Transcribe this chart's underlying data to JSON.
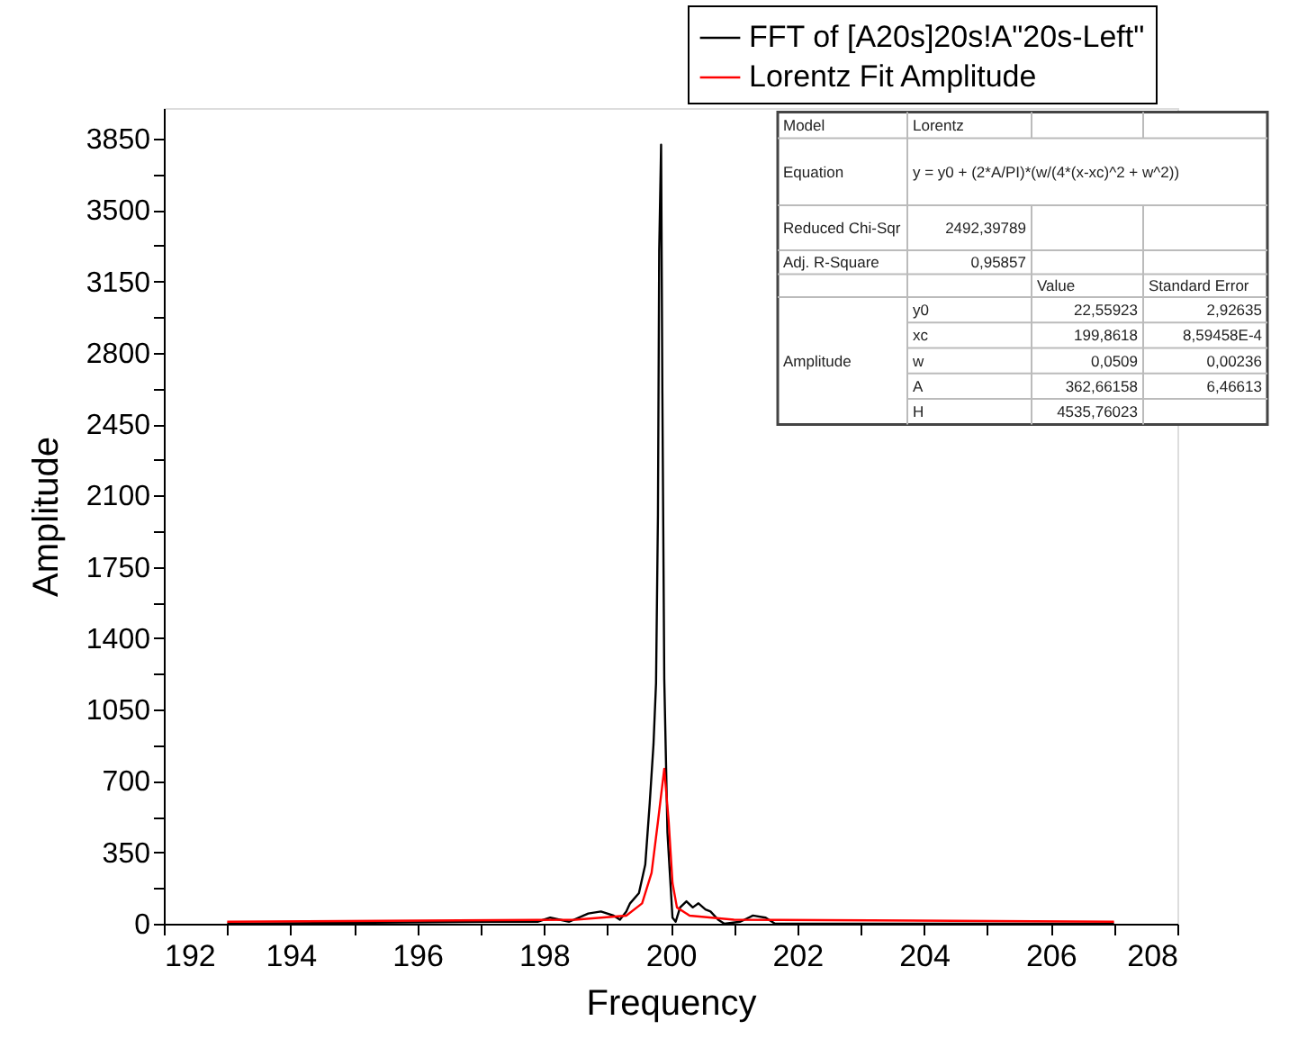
{
  "chart_data": {
    "type": "line",
    "xlabel": "Frequency",
    "ylabel": "Amplitude",
    "xlim": [
      192,
      208
    ],
    "xticks": [
      192,
      {
        "value": 193,
        "label": null
      },
      194,
      {
        "value": 195,
        "label": null
      },
      196,
      {
        "value": 197,
        "label": null
      },
      198,
      {
        "value": 199,
        "label": null
      },
      200,
      {
        "value": 201,
        "label": null
      },
      202,
      {
        "value": 203,
        "label": null
      },
      204,
      {
        "value": 205,
        "label": null
      },
      206,
      {
        "value": 207,
        "label": null
      },
      208
    ],
    "ylim": [
      0,
      4000
    ],
    "yticks": [
      0,
      {
        "value": 175,
        "label": null
      },
      350,
      {
        "value": 525,
        "label": null
      },
      700,
      {
        "value": 875,
        "label": null
      },
      1050,
      {
        "value": 1225,
        "label": null
      },
      1400,
      {
        "value": 1575,
        "label": null
      },
      1750,
      {
        "value": 1925,
        "label": null
      },
      2100,
      {
        "value": 2275,
        "label": null
      },
      2450,
      {
        "value": 2625,
        "label": null
      },
      2800,
      {
        "value": 2975,
        "label": null
      },
      3150,
      {
        "value": 3325,
        "label": null
      },
      3500,
      {
        "value": 3675,
        "label": null
      },
      3850
    ],
    "grid": false,
    "legend": "top right",
    "marker": "none",
    "line_style": "solid",
    "series": [
      {
        "name": "FFT of [A20s]20s!A\"20s-Left\"",
        "color": "#000000",
        "x": [
          193,
          197.2,
          197.9,
          198.1,
          198.4,
          198.7,
          198.9,
          199.1,
          199.2,
          199.3,
          199.36,
          199.5,
          199.6,
          199.67,
          199.73,
          199.77,
          199.8,
          199.82,
          199.85,
          199.87,
          199.9,
          199.95,
          199.98,
          200.03,
          200.08,
          200.15,
          200.25,
          200.35,
          200.44,
          200.55,
          200.63,
          200.75,
          200.85,
          201.1,
          201.3,
          201.5,
          201.65,
          202.2,
          207
        ],
        "values": [
          0,
          10,
          10,
          30,
          10,
          50,
          60,
          40,
          20,
          60,
          100,
          150,
          290,
          590,
          880,
          1180,
          2000,
          3300,
          3820,
          2600,
          1200,
          450,
          290,
          30,
          10,
          80,
          110,
          80,
          100,
          70,
          60,
          20,
          0,
          10,
          40,
          30,
          0,
          0,
          0
        ]
      },
      {
        "name": "Lorentz Fit Amplitude",
        "color": "#ff0000",
        "x": [
          193,
          198.5,
          199.3,
          199.55,
          199.7,
          199.8,
          199.9,
          199.97,
          200.03,
          200.1,
          200.3,
          201,
          207
        ],
        "values": [
          10,
          20,
          40,
          100,
          250,
          500,
          760,
          500,
          200,
          80,
          40,
          20,
          10
        ]
      }
    ],
    "annotations": [
      "Model",
      "Lorentz",
      "Equation",
      "y = y0 + (2*A/PI)*(w/(4*(x-xc)^2 + w^2))",
      "Reduced Chi-Sqr",
      "2492,39789",
      "Adj. R-Square",
      "0,95857",
      "Value",
      "Standard Error",
      "Amplitude",
      "y0",
      "22,55923",
      "2,92635",
      "xc",
      "199,8618",
      "8,59458E-4",
      "w",
      "0,0509",
      "0,00236",
      "A",
      "362,66158",
      "6,46613",
      "H",
      "4535,76023"
    ]
  }
}
